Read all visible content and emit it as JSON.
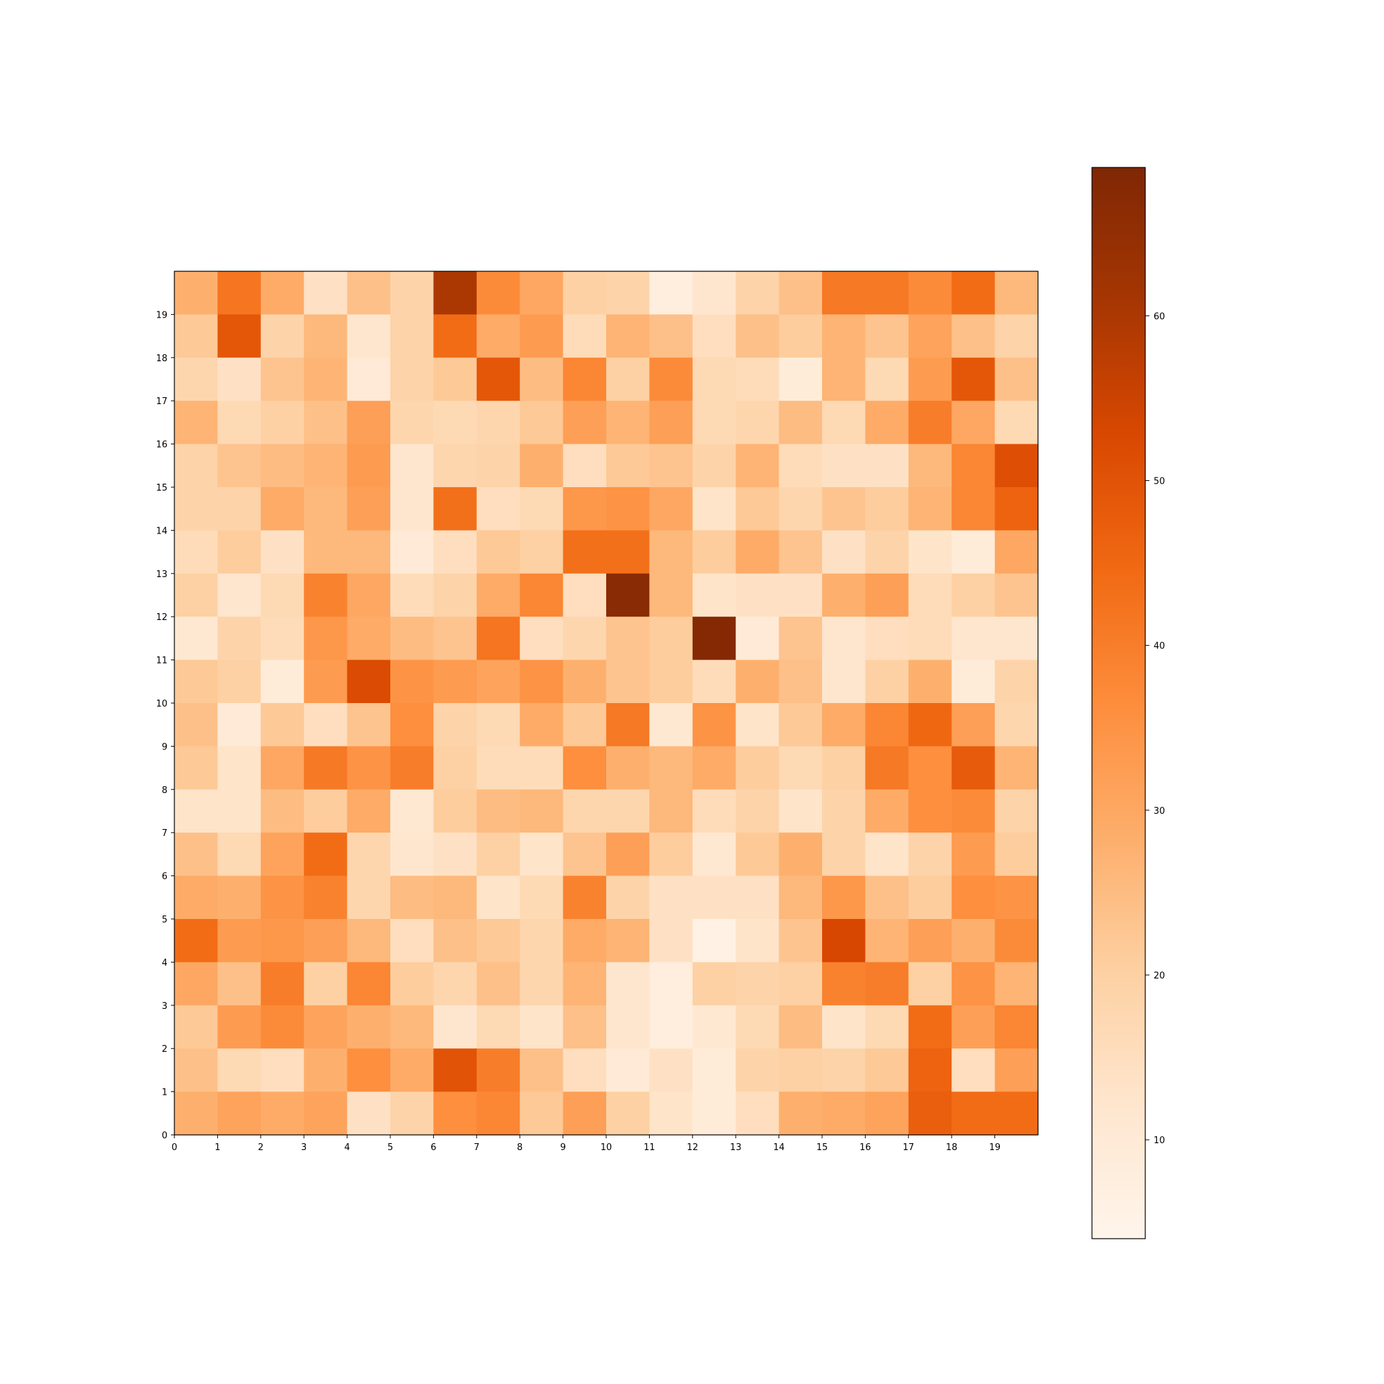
{
  "chart_data": {
    "type": "heatmap",
    "title": "",
    "xlabel": "",
    "ylabel": "",
    "colormap": "Oranges",
    "colormap_stops": [
      "#fff5eb",
      "#fee6ce",
      "#fdd0a2",
      "#fdae6b",
      "#fd8d3c",
      "#f16913",
      "#d94801",
      "#a63603",
      "#7f2704"
    ],
    "grid": false,
    "x_ticks": [
      "0",
      "1",
      "2",
      "3",
      "4",
      "5",
      "6",
      "7",
      "8",
      "9",
      "10",
      "11",
      "12",
      "13",
      "14",
      "15",
      "16",
      "17",
      "18",
      "19"
    ],
    "y_ticks": [
      "0",
      "1",
      "2",
      "3",
      "4",
      "5",
      "6",
      "7",
      "8",
      "9",
      "10",
      "11",
      "12",
      "13",
      "14",
      "15",
      "16",
      "17",
      "18",
      "19"
    ],
    "xlim": [
      0,
      20
    ],
    "ylim": [
      0,
      20
    ],
    "colorbar": {
      "range": [
        4,
        69
      ],
      "ticks": [
        "10",
        "20",
        "30",
        "40",
        "50",
        "60"
      ],
      "placement": "right"
    },
    "rows_top_to_bottom": [
      [
        28,
        42,
        29,
        14,
        24,
        19,
        60,
        37,
        30,
        20,
        19,
        8,
        12,
        19,
        24,
        41,
        41,
        37,
        44,
        26
      ],
      [
        22,
        49,
        19,
        26,
        12,
        19,
        44,
        29,
        33,
        16,
        27,
        24,
        15,
        24,
        21,
        27,
        23,
        31,
        24,
        19
      ],
      [
        18,
        14,
        23,
        27,
        10,
        19,
        22,
        49,
        25,
        38,
        20,
        37,
        17,
        16,
        9,
        27,
        17,
        33,
        49,
        24
      ],
      [
        27,
        17,
        20,
        24,
        32,
        18,
        17,
        18,
        22,
        32,
        27,
        32,
        17,
        18,
        25,
        17,
        29,
        40,
        30,
        17
      ],
      [
        19,
        23,
        25,
        27,
        33,
        12,
        18,
        19,
        28,
        15,
        22,
        23,
        19,
        27,
        16,
        14,
        14,
        26,
        38,
        51
      ],
      [
        19,
        19,
        29,
        26,
        32,
        12,
        43,
        15,
        17,
        34,
        35,
        30,
        13,
        22,
        18,
        23,
        21,
        27,
        38,
        46
      ],
      [
        16,
        21,
        14,
        26,
        26,
        10,
        15,
        22,
        20,
        43,
        43,
        26,
        21,
        29,
        23,
        14,
        19,
        13,
        9,
        30
      ],
      [
        20,
        12,
        17,
        39,
        30,
        16,
        19,
        29,
        38,
        15,
        67,
        26,
        13,
        14,
        14,
        28,
        32,
        16,
        20,
        23
      ],
      [
        11,
        19,
        16,
        34,
        29,
        25,
        23,
        42,
        15,
        18,
        23,
        21,
        68,
        10,
        23,
        12,
        15,
        16,
        12,
        12
      ],
      [
        22,
        20,
        9,
        33,
        52,
        35,
        33,
        31,
        35,
        28,
        23,
        21,
        16,
        28,
        24,
        12,
        20,
        28,
        9,
        19
      ],
      [
        24,
        10,
        22,
        15,
        23,
        36,
        19,
        17,
        29,
        22,
        41,
        11,
        35,
        13,
        22,
        29,
        38,
        45,
        32,
        18
      ],
      [
        22,
        13,
        30,
        41,
        35,
        40,
        20,
        16,
        16,
        36,
        28,
        26,
        29,
        21,
        17,
        20,
        41,
        36,
        48,
        27
      ],
      [
        13,
        13,
        25,
        21,
        29,
        11,
        21,
        25,
        26,
        18,
        18,
        26,
        16,
        19,
        13,
        19,
        29,
        36,
        37,
        19
      ],
      [
        24,
        17,
        31,
        44,
        18,
        12,
        14,
        20,
        13,
        23,
        32,
        21,
        11,
        22,
        28,
        19,
        13,
        19,
        33,
        21
      ],
      [
        29,
        28,
        35,
        39,
        18,
        25,
        26,
        13,
        17,
        39,
        19,
        14,
        14,
        14,
        26,
        34,
        24,
        21,
        36,
        35
      ],
      [
        44,
        33,
        34,
        32,
        26,
        15,
        24,
        22,
        18,
        29,
        27,
        14,
        6,
        13,
        23,
        53,
        27,
        32,
        28,
        37
      ],
      [
        30,
        24,
        40,
        20,
        38,
        21,
        18,
        24,
        18,
        27,
        12,
        8,
        20,
        19,
        20,
        39,
        40,
        20,
        35,
        27
      ],
      [
        22,
        33,
        37,
        31,
        28,
        26,
        12,
        17,
        13,
        24,
        12,
        8,
        11,
        17,
        25,
        13,
        17,
        44,
        32,
        38
      ],
      [
        24,
        17,
        15,
        28,
        36,
        29,
        50,
        40,
        24,
        15,
        10,
        14,
        9,
        19,
        20,
        19,
        22,
        46,
        15,
        32
      ],
      [
        28,
        31,
        29,
        31,
        14,
        19,
        36,
        38,
        22,
        32,
        20,
        13,
        9,
        15,
        28,
        29,
        31,
        47,
        44,
        44
      ]
    ]
  }
}
